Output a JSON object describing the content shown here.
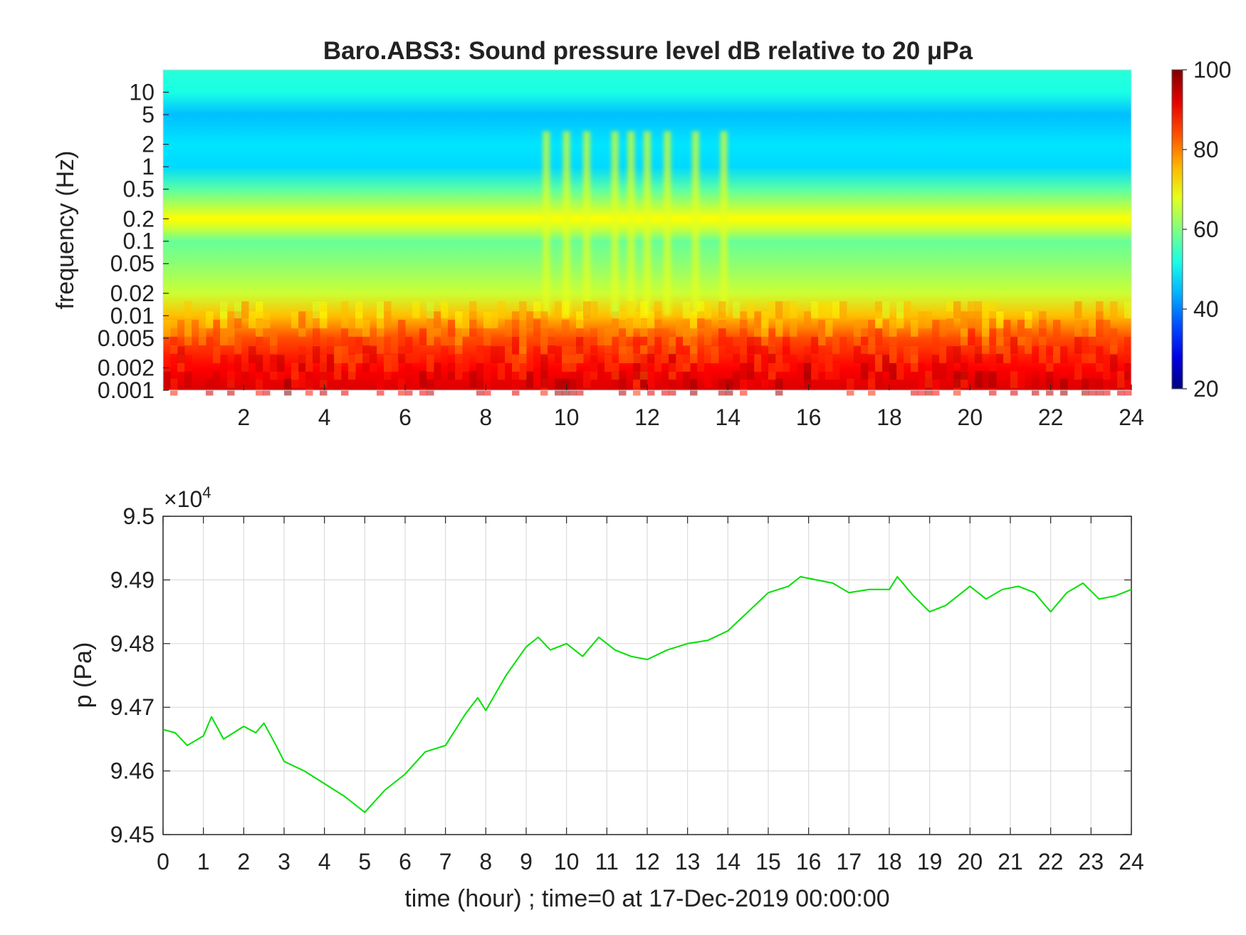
{
  "chart_data": [
    {
      "type": "heatmap",
      "title": "Baro.ABS3: Sound pressure level dB relative to 20 μPa",
      "xlabel": "",
      "ylabel": "frequency (Hz)",
      "x_tick_labels": [
        "2",
        "4",
        "6",
        "8",
        "10",
        "12",
        "14",
        "16",
        "18",
        "20",
        "22",
        "24"
      ],
      "x_ticks": [
        2,
        4,
        6,
        8,
        10,
        12,
        14,
        16,
        18,
        20,
        22,
        24
      ],
      "xlim": [
        0,
        24
      ],
      "y_scale": "log",
      "ylim": [
        0.001,
        20
      ],
      "y_tick_labels": [
        "10",
        "5",
        "2",
        "1",
        "0.5",
        "0.2",
        "0.1",
        "0.05",
        "0.02",
        "0.01",
        "0.005",
        "0.002",
        "0.001"
      ],
      "y_ticks": [
        10,
        5,
        2,
        1,
        0.5,
        0.2,
        0.1,
        0.05,
        0.02,
        0.01,
        0.005,
        0.002,
        0.001
      ],
      "colormap": "jet",
      "colorbar": {
        "min": 20,
        "max": 100,
        "tick_labels": [
          "100",
          "80",
          "60",
          "40",
          "20"
        ],
        "ticks": [
          100,
          80,
          60,
          40,
          20
        ]
      },
      "grid": false,
      "approx_level_profile_db": {
        "frequency_hz": [
          0.001,
          0.002,
          0.005,
          0.01,
          0.02,
          0.05,
          0.1,
          0.15,
          0.2,
          0.3,
          0.5,
          1,
          2,
          5,
          10,
          20
        ],
        "level_db": [
          93,
          90,
          84,
          75,
          66,
          61,
          58,
          66,
          70,
          64,
          57,
          47,
          48,
          45,
          52,
          53
        ]
      },
      "burst_hours": [
        9.5,
        10,
        10.5,
        11.2,
        11.6,
        12,
        12.5,
        13.2,
        13.9
      ]
    },
    {
      "type": "line",
      "title": "",
      "xlabel": "time (hour) ; time=0 at 17-Dec-2019 00:00:00",
      "ylabel": "p (Pa)",
      "y_multiplier_label": "×10",
      "y_multiplier_exponent": "4",
      "xlim": [
        0,
        24
      ],
      "ylim": [
        94500,
        95000
      ],
      "x_tick_labels": [
        "0",
        "1",
        "2",
        "3",
        "4",
        "5",
        "6",
        "7",
        "8",
        "9",
        "10",
        "11",
        "12",
        "13",
        "14",
        "15",
        "16",
        "17",
        "18",
        "19",
        "20",
        "21",
        "22",
        "23",
        "24"
      ],
      "y_tick_labels": [
        "9.5",
        "9.49",
        "9.48",
        "9.47",
        "9.46",
        "9.45"
      ],
      "y_ticks": [
        95000,
        94900,
        94800,
        94700,
        94600,
        94500
      ],
      "grid": true,
      "series": [
        {
          "color": "#00e000",
          "x": [
            0,
            0.3,
            0.6,
            1.0,
            1.2,
            1.5,
            2.0,
            2.3,
            2.5,
            2.8,
            3.0,
            3.5,
            4.0,
            4.5,
            5.0,
            5.5,
            6.0,
            6.5,
            7.0,
            7.5,
            7.8,
            8.0,
            8.5,
            9.0,
            9.3,
            9.6,
            10.0,
            10.4,
            10.8,
            11.2,
            11.6,
            12.0,
            12.5,
            13.0,
            13.5,
            14.0,
            14.5,
            15.0,
            15.5,
            15.8,
            16.2,
            16.6,
            17.0,
            17.5,
            18.0,
            18.2,
            18.6,
            19.0,
            19.4,
            19.8,
            20.0,
            20.4,
            20.8,
            21.2,
            21.6,
            22.0,
            22.4,
            22.8,
            23.2,
            23.6,
            24.0
          ],
          "values": [
            94665,
            94660,
            94640,
            94655,
            94685,
            94650,
            94670,
            94660,
            94675,
            94640,
            94615,
            94600,
            94580,
            94560,
            94535,
            94570,
            94595,
            94630,
            94640,
            94690,
            94715,
            94695,
            94750,
            94795,
            94810,
            94790,
            94800,
            94780,
            94810,
            94790,
            94780,
            94775,
            94790,
            94800,
            94805,
            94820,
            94850,
            94880,
            94890,
            94905,
            94900,
            94895,
            94880,
            94885,
            94885,
            94905,
            94875,
            94850,
            94860,
            94880,
            94890,
            94870,
            94885,
            94890,
            94880,
            94850,
            94880,
            94895,
            94870,
            94875,
            94885
          ]
        }
      ]
    }
  ]
}
